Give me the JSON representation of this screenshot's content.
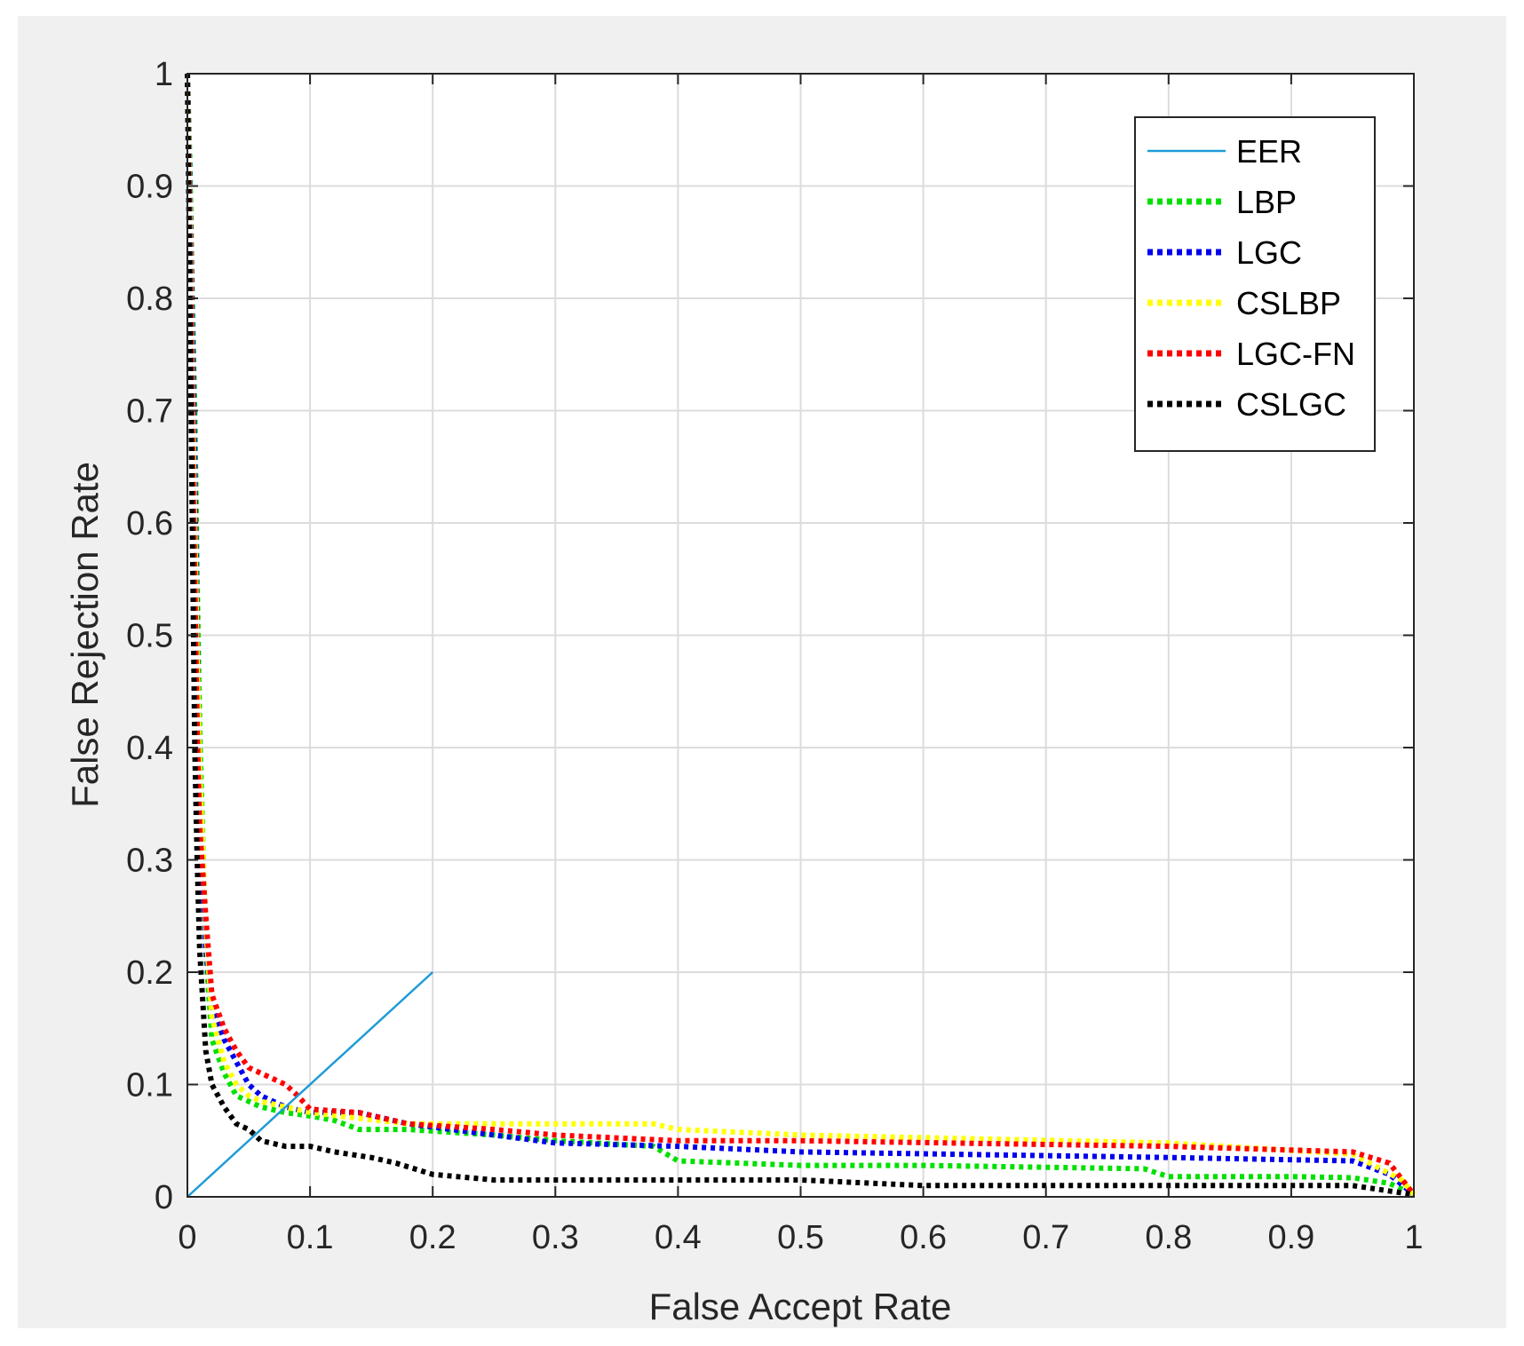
{
  "chart_data": {
    "type": "line",
    "title": "",
    "xlabel": "False Accept Rate",
    "ylabel": "False Rejection Rate",
    "xlim": [
      0,
      1
    ],
    "ylim": [
      0,
      1
    ],
    "xticks": [
      "0",
      "0.1",
      "0.2",
      "0.3",
      "0.4",
      "0.5",
      "0.6",
      "0.7",
      "0.8",
      "0.9",
      "1"
    ],
    "yticks": [
      "0",
      "0.1",
      "0.2",
      "0.3",
      "0.4",
      "0.5",
      "0.6",
      "0.7",
      "0.8",
      "0.9",
      "1"
    ],
    "grid": true,
    "legend_position": "top-right",
    "series": [
      {
        "name": "EER",
        "color": "#1f9bd7",
        "style": "solid",
        "x": [
          0,
          0.2
        ],
        "y": [
          0,
          0.2
        ]
      },
      {
        "name": "LBP",
        "color": "#00e000",
        "style": "dotted",
        "x": [
          0,
          0.002,
          0.004,
          0.006,
          0.008,
          0.01,
          0.015,
          0.02,
          0.03,
          0.04,
          0.05,
          0.06,
          0.08,
          0.1,
          0.12,
          0.14,
          0.18,
          0.25,
          0.3,
          0.38,
          0.4,
          0.5,
          0.6,
          0.78,
          0.8,
          0.9,
          0.95,
          0.98,
          1
        ],
        "y": [
          1,
          0.92,
          0.8,
          0.7,
          0.55,
          0.42,
          0.22,
          0.14,
          0.11,
          0.09,
          0.085,
          0.08,
          0.075,
          0.072,
          0.068,
          0.06,
          0.06,
          0.055,
          0.05,
          0.045,
          0.032,
          0.028,
          0.028,
          0.025,
          0.018,
          0.018,
          0.017,
          0.012,
          0.002
        ]
      },
      {
        "name": "LGC",
        "color": "#0000ee",
        "style": "dotted",
        "x": [
          0,
          0.002,
          0.004,
          0.006,
          0.008,
          0.01,
          0.015,
          0.02,
          0.03,
          0.04,
          0.05,
          0.06,
          0.08,
          0.1,
          0.14,
          0.18,
          0.25,
          0.3,
          0.4,
          0.5,
          0.8,
          0.95,
          0.98,
          1
        ],
        "y": [
          1,
          0.9,
          0.78,
          0.65,
          0.5,
          0.35,
          0.22,
          0.17,
          0.14,
          0.12,
          0.1,
          0.09,
          0.08,
          0.075,
          0.075,
          0.065,
          0.055,
          0.048,
          0.045,
          0.04,
          0.035,
          0.032,
          0.02,
          0.002
        ]
      },
      {
        "name": "CSLBP",
        "color": "#ffff00",
        "style": "dotted",
        "x": [
          0,
          0.002,
          0.004,
          0.006,
          0.008,
          0.01,
          0.015,
          0.02,
          0.03,
          0.04,
          0.05,
          0.06,
          0.08,
          0.1,
          0.14,
          0.18,
          0.25,
          0.38,
          0.4,
          0.5,
          0.8,
          0.95,
          0.99,
          1
        ],
        "y": [
          1,
          0.88,
          0.72,
          0.6,
          0.48,
          0.38,
          0.24,
          0.16,
          0.12,
          0.1,
          0.09,
          0.085,
          0.08,
          0.075,
          0.07,
          0.065,
          0.065,
          0.065,
          0.06,
          0.055,
          0.048,
          0.038,
          0.015,
          0.002
        ]
      },
      {
        "name": "LGC-FN",
        "color": "#ff0000",
        "style": "dotted",
        "x": [
          0,
          0.002,
          0.004,
          0.006,
          0.008,
          0.01,
          0.015,
          0.02,
          0.03,
          0.04,
          0.05,
          0.06,
          0.08,
          0.09,
          0.1,
          0.14,
          0.18,
          0.25,
          0.3,
          0.4,
          0.5,
          0.8,
          0.95,
          0.98,
          1
        ],
        "y": [
          1,
          0.85,
          0.68,
          0.55,
          0.42,
          0.33,
          0.25,
          0.18,
          0.15,
          0.13,
          0.115,
          0.11,
          0.1,
          0.09,
          0.078,
          0.075,
          0.065,
          0.06,
          0.055,
          0.05,
          0.05,
          0.045,
          0.04,
          0.03,
          0.002
        ]
      },
      {
        "name": "CSLGC",
        "color": "#000000",
        "style": "dotted",
        "x": [
          0,
          0.002,
          0.004,
          0.006,
          0.008,
          0.01,
          0.015,
          0.02,
          0.03,
          0.04,
          0.05,
          0.06,
          0.08,
          0.1,
          0.12,
          0.15,
          0.17,
          0.2,
          0.25,
          0.5,
          0.6,
          0.8,
          0.9,
          0.95,
          1
        ],
        "y": [
          1,
          0.8,
          0.6,
          0.4,
          0.3,
          0.22,
          0.13,
          0.1,
          0.08,
          0.065,
          0.06,
          0.05,
          0.045,
          0.045,
          0.04,
          0.035,
          0.03,
          0.02,
          0.015,
          0.015,
          0.01,
          0.01,
          0.01,
          0.01,
          0.002
        ]
      }
    ]
  }
}
